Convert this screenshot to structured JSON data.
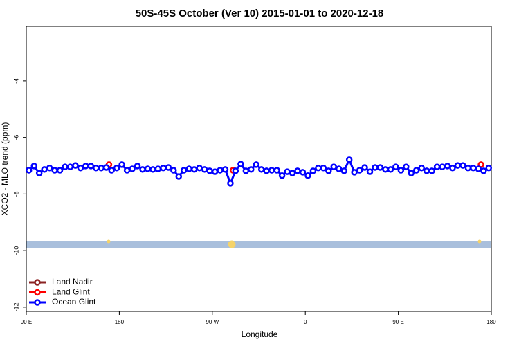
{
  "chart_data": {
    "type": "line",
    "title": "50S-45S October (Ver 10)   2015-01-01 to 2020-12-18",
    "xlabel": "Longitude",
    "ylabel": "XCO2 - MLO trend (ppm)",
    "xlim": [
      90,
      540
    ],
    "ylim": [
      -12.15,
      -2.07
    ],
    "xticks": [
      {
        "value": 90,
        "label": "90 E"
      },
      180,
      {
        "value": 270,
        "label": "90 W"
      },
      {
        "value": 360,
        "label": "0"
      },
      {
        "value": 450,
        "label": "90 E"
      },
      {
        "value": 540,
        "label": "180"
      }
    ],
    "yticks": [
      -12,
      -10,
      -8,
      -6,
      -4
    ],
    "legend": "bottom-left",
    "series": [
      {
        "name": "Land Nadir",
        "color": "#8b2323",
        "x": [],
        "values": []
      },
      {
        "name": "Land Glint",
        "color": "#ff0000",
        "x": [
          170,
          290,
          530
        ],
        "values": [
          -6.96,
          -7.16,
          -6.96
        ]
      },
      {
        "name": "Ocean Glint",
        "color": "#0000ff",
        "x": [
          92.5,
          97.5,
          102.5,
          107.5,
          112.5,
          117.5,
          122.5,
          127.5,
          132.5,
          137.5,
          142.5,
          147.5,
          152.5,
          157.5,
          162.5,
          167.5,
          172.5,
          177.5,
          182.5,
          187.5,
          192.5,
          197.5,
          202.5,
          207.5,
          212.5,
          217.5,
          222.5,
          227.5,
          232.5,
          237.5,
          242.5,
          247.5,
          252.5,
          257.5,
          262.5,
          267.5,
          272.5,
          277.5,
          282.5,
          287.5,
          292.5,
          297.5,
          302.5,
          307.5,
          312.5,
          317.5,
          322.5,
          327.5,
          332.5,
          337.5,
          342.5,
          347.5,
          352.5,
          357.5,
          362.5,
          367.5,
          372.5,
          377.5,
          382.5,
          387.5,
          392.5,
          397.5,
          402.5,
          407.5,
          412.5,
          417.5,
          422.5,
          427.5,
          432.5,
          437.5,
          442.5,
          447.5,
          452.5,
          457.5,
          462.5,
          467.5,
          472.5,
          477.5,
          482.5,
          487.5,
          492.5,
          497.5,
          502.5,
          507.5,
          512.5,
          517.5,
          522.5,
          527.5,
          532.5,
          537.5
        ],
        "values": [
          -7.16,
          -7.01,
          -7.26,
          -7.13,
          -7.08,
          -7.16,
          -7.16,
          -7.04,
          -7.04,
          -6.99,
          -7.08,
          -7.01,
          -7.01,
          -7.08,
          -7.08,
          -7.06,
          -7.16,
          -7.08,
          -6.96,
          -7.16,
          -7.11,
          -7.01,
          -7.13,
          -7.11,
          -7.13,
          -7.11,
          -7.08,
          -7.06,
          -7.16,
          -7.38,
          -7.16,
          -7.11,
          -7.13,
          -7.08,
          -7.13,
          -7.18,
          -7.21,
          -7.16,
          -7.13,
          -7.62,
          -7.18,
          -6.94,
          -7.18,
          -7.13,
          -6.96,
          -7.13,
          -7.18,
          -7.16,
          -7.16,
          -7.35,
          -7.21,
          -7.26,
          -7.18,
          -7.23,
          -7.35,
          -7.18,
          -7.08,
          -7.08,
          -7.18,
          -7.04,
          -7.11,
          -7.18,
          -6.79,
          -7.23,
          -7.16,
          -7.06,
          -7.21,
          -7.06,
          -7.06,
          -7.13,
          -7.13,
          -7.04,
          -7.16,
          -7.04,
          -7.26,
          -7.16,
          -7.08,
          -7.18,
          -7.18,
          -7.04,
          -7.04,
          -7.01,
          -7.08,
          -6.99,
          -6.99,
          -7.08,
          -7.08,
          -7.11,
          -7.18,
          -7.08
        ]
      }
    ]
  }
}
